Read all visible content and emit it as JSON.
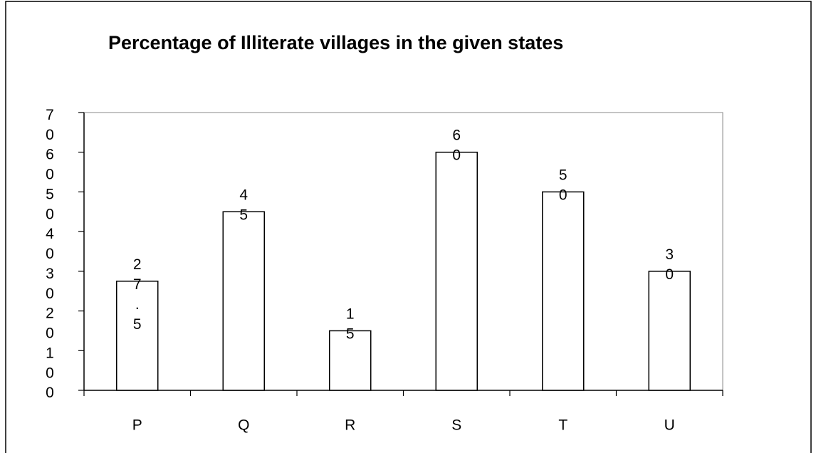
{
  "chart_data": {
    "type": "bar",
    "title": "Percentage of Illiterate villages in the given states",
    "categories": [
      "P",
      "Q",
      "R",
      "S",
      "T",
      "U"
    ],
    "values": [
      27.5,
      45,
      15,
      60,
      50,
      30
    ],
    "color": "#ffffff",
    "ylim": [
      0,
      70
    ],
    "yticks": [
      0,
      10,
      20,
      30,
      40,
      50,
      60,
      70
    ]
  }
}
